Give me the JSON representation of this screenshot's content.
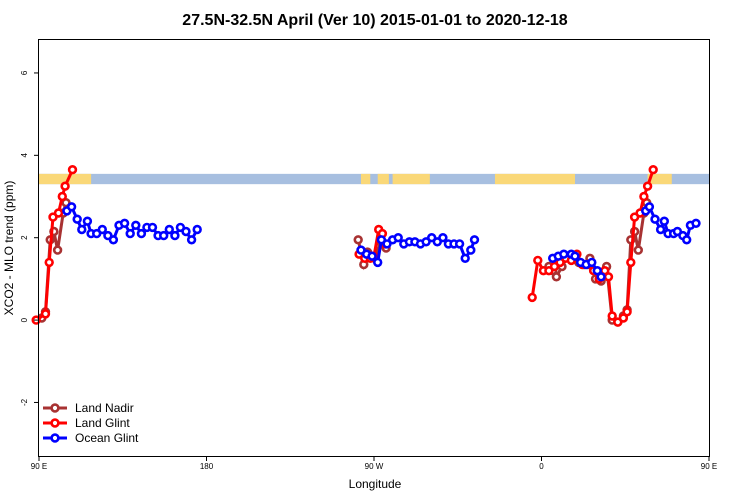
{
  "chart_data": {
    "type": "line",
    "title": "27.5N-32.5N April (Ver 10)   2015-01-01 to 2020-12-18",
    "xlabel": "Longitude",
    "ylabel": "XCO2 - MLO trend (ppm)",
    "xlim": [
      90,
      450
    ],
    "ylim": [
      -3.3,
      6.8
    ],
    "x_ticks": [
      {
        "value": 90,
        "label": "90 E"
      },
      {
        "value": 180,
        "label": "180"
      },
      {
        "value": 270,
        "label": "90 W"
      },
      {
        "value": 360,
        "label": "0"
      },
      {
        "value": 450,
        "label": "90 E"
      },
      {
        "value": 540,
        "label": "180"
      }
    ],
    "y_ticks": [
      {
        "value": -2,
        "label": "-2"
      },
      {
        "value": 0,
        "label": "0"
      },
      {
        "value": 2,
        "label": "2"
      },
      {
        "value": 4,
        "label": "4"
      },
      {
        "value": 6,
        "label": "6"
      }
    ],
    "land_mask_band": {
      "y_range": [
        3.3,
        3.55
      ],
      "ocean_color": "#a7bfe0",
      "land_color": "#fad878"
    },
    "legend": {
      "position": "bottom-left"
    },
    "series": [
      {
        "name": "Land Nadir",
        "color": "#a83232",
        "segments": [
          [
            [
              91.5,
              0.05
            ],
            [
              93.5,
              0.2
            ],
            [
              96,
              1.95
            ],
            [
              98,
              2.15
            ],
            [
              100,
              1.7
            ],
            [
              103,
              2.6
            ],
            [
              104.5,
              2.85
            ]
          ],
          [
            [
              261.5,
              1.95
            ],
            [
              264.5,
              1.35
            ],
            [
              266.5,
              1.65
            ],
            [
              270.5,
              1.5
            ],
            [
              273.5,
              1.9
            ],
            [
              276.5,
              1.75
            ]
          ],
          [
            [
              364,
              1.3
            ],
            [
              366,
              1.2
            ],
            [
              368,
              1.05
            ],
            [
              371,
              1.3
            ],
            [
              374,
              1.55
            ],
            [
              377,
              1.55
            ],
            [
              380,
              1.4
            ],
            [
              383,
              1.35
            ],
            [
              386,
              1.5
            ],
            [
              389,
              1.0
            ],
            [
              392,
              0.95
            ],
            [
              395,
              1.3
            ],
            [
              398,
              0.0
            ],
            [
              401,
              -0.05
            ],
            [
              404,
              0.1
            ],
            [
              406,
              0.25
            ],
            [
              408,
              1.95
            ],
            [
              410,
              2.15
            ],
            [
              412,
              1.7
            ],
            [
              415,
              2.6
            ],
            [
              416.5,
              2.85
            ]
          ]
        ]
      },
      {
        "name": "Land Glint",
        "color": "#ff0000",
        "segments": [
          [
            [
              88.5,
              0.0
            ],
            [
              93.5,
              0.15
            ],
            [
              95.5,
              1.4
            ],
            [
              97.5,
              2.5
            ],
            [
              100.5,
              2.6
            ],
            [
              102.5,
              3.0
            ],
            [
              104,
              3.25
            ],
            [
              108,
              3.65
            ]
          ],
          [
            [
              262,
              1.6
            ],
            [
              265,
              1.5
            ],
            [
              268,
              1.5
            ],
            [
              270,
              1.55
            ],
            [
              272.5,
              2.2
            ],
            [
              274.5,
              2.1
            ],
            [
              276,
              1.85
            ]
          ],
          [
            [
              355,
              0.55
            ],
            [
              358,
              1.45
            ],
            [
              361,
              1.2
            ],
            [
              364,
              1.2
            ],
            [
              367,
              1.3
            ],
            [
              370,
              1.4
            ],
            [
              373,
              1.5
            ],
            [
              376,
              1.45
            ],
            [
              379,
              1.6
            ],
            [
              382,
              1.35
            ],
            [
              385,
              1.35
            ],
            [
              388,
              1.2
            ],
            [
              391,
              1.0
            ],
            [
              394,
              1.2
            ],
            [
              396,
              1.05
            ],
            [
              398,
              0.1
            ],
            [
              401,
              -0.05
            ],
            [
              404,
              0.05
            ],
            [
              406,
              0.2
            ],
            [
              408,
              1.4
            ],
            [
              410,
              2.5
            ],
            [
              413,
              2.6
            ],
            [
              415,
              3.0
            ],
            [
              417,
              3.25
            ],
            [
              420,
              3.65
            ]
          ]
        ]
      },
      {
        "name": "Ocean Glint",
        "color": "#0000ff",
        "segments": [
          [
            [
              105,
              2.65
            ],
            [
              107.5,
              2.75
            ],
            [
              110.5,
              2.45
            ],
            [
              113,
              2.2
            ],
            [
              116,
              2.4
            ],
            [
              118,
              2.1
            ],
            [
              121,
              2.1
            ],
            [
              124,
              2.2
            ],
            [
              127,
              2.05
            ],
            [
              130,
              1.95
            ],
            [
              133,
              2.3
            ],
            [
              136,
              2.35
            ],
            [
              139,
              2.1
            ],
            [
              142,
              2.3
            ],
            [
              145,
              2.1
            ],
            [
              148,
              2.25
            ],
            [
              151,
              2.25
            ],
            [
              154,
              2.05
            ],
            [
              157,
              2.05
            ],
            [
              160,
              2.2
            ],
            [
              163,
              2.05
            ],
            [
              166,
              2.25
            ],
            [
              169,
              2.15
            ],
            [
              172,
              1.95
            ],
            [
              175,
              2.2
            ]
          ],
          [
            [
              263,
              1.7
            ],
            [
              266,
              1.6
            ],
            [
              269,
              1.55
            ],
            [
              272,
              1.4
            ],
            [
              274,
              1.95
            ],
            [
              277,
              1.85
            ],
            [
              280,
              1.95
            ],
            [
              283,
              2.0
            ],
            [
              286,
              1.85
            ],
            [
              289,
              1.9
            ],
            [
              292,
              1.9
            ],
            [
              295,
              1.85
            ],
            [
              298,
              1.9
            ],
            [
              301,
              2.0
            ],
            [
              304,
              1.9
            ],
            [
              307,
              2.0
            ],
            [
              310,
              1.85
            ],
            [
              313,
              1.85
            ],
            [
              316,
              1.85
            ],
            [
              319,
              1.5
            ],
            [
              322,
              1.7
            ],
            [
              324,
              1.95
            ]
          ],
          [
            [
              366,
              1.5
            ],
            [
              369,
              1.55
            ],
            [
              372,
              1.6
            ],
            [
              376,
              1.6
            ],
            [
              378,
              1.55
            ],
            [
              381,
              1.4
            ],
            [
              384,
              1.35
            ],
            [
              387,
              1.4
            ],
            [
              390,
              1.2
            ],
            [
              392,
              1.05
            ]
          ],
          [
            [
              416,
              2.65
            ],
            [
              418,
              2.75
            ],
            [
              421,
              2.45
            ],
            [
              424,
              2.2
            ],
            [
              426,
              2.4
            ],
            [
              428,
              2.1
            ],
            [
              431,
              2.1
            ],
            [
              433,
              2.15
            ],
            [
              436,
              2.05
            ],
            [
              438,
              1.95
            ],
            [
              440,
              2.3
            ],
            [
              443,
              2.35
            ]
          ]
        ]
      }
    ]
  }
}
